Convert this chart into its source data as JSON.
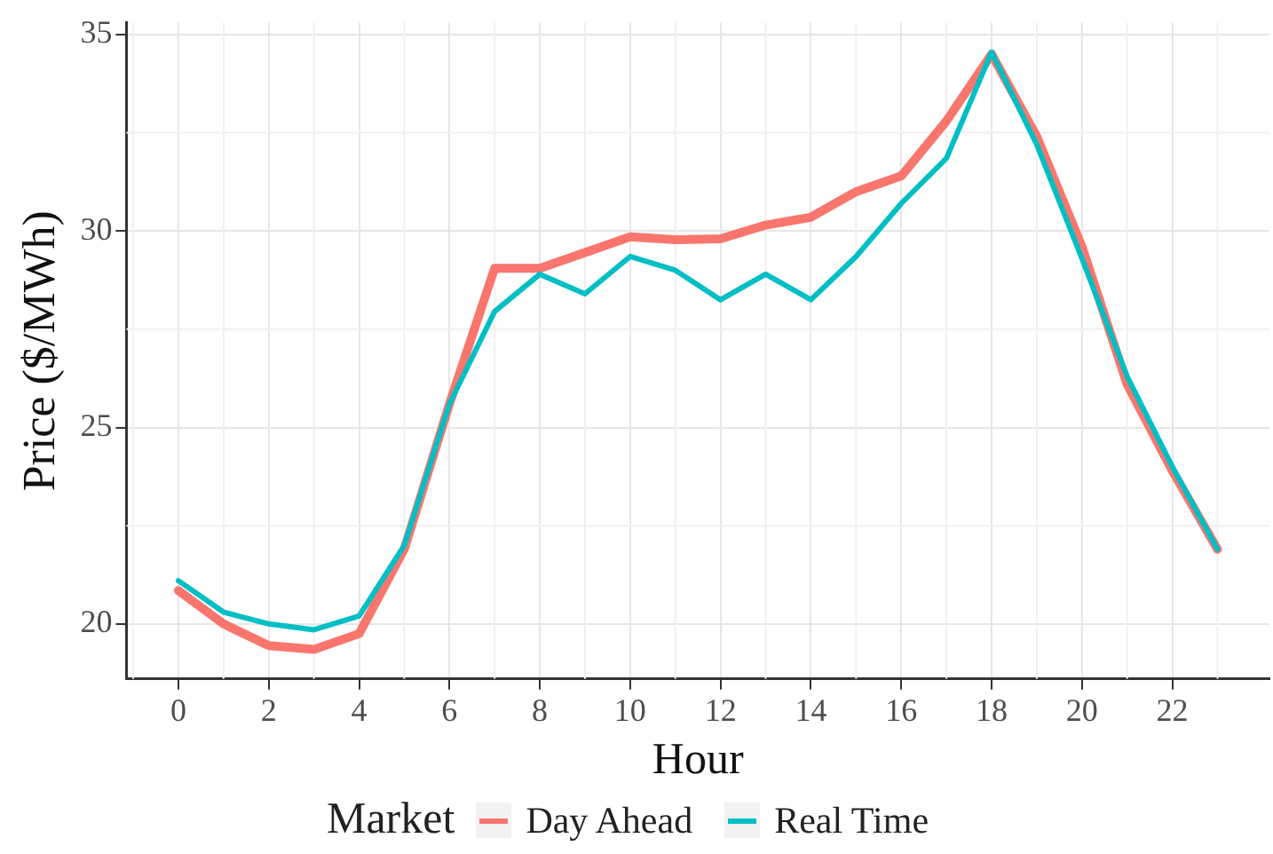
{
  "chart_data": {
    "type": "line",
    "xlabel": "Hour",
    "ylabel": "Price ($/MWh)",
    "legend_title": "Market",
    "x": [
      0,
      1,
      2,
      3,
      4,
      5,
      6,
      7,
      8,
      9,
      10,
      11,
      12,
      13,
      14,
      15,
      16,
      17,
      18,
      19,
      20,
      21,
      22,
      23
    ],
    "series": [
      {
        "name": "Day Ahead",
        "color": "#f8766d",
        "values": [
          20.85,
          20.0,
          19.45,
          19.35,
          19.75,
          21.9,
          25.6,
          29.05,
          29.05,
          29.45,
          29.85,
          29.78,
          29.8,
          30.15,
          30.35,
          31.0,
          31.4,
          32.8,
          34.5,
          32.4,
          29.6,
          26.1,
          23.9,
          21.9
        ]
      },
      {
        "name": "Real Time",
        "color": "#00bfc4",
        "values": [
          21.1,
          20.3,
          20.0,
          19.85,
          20.2,
          22.0,
          25.6,
          27.95,
          28.9,
          28.4,
          29.35,
          29.0,
          28.25,
          28.9,
          28.25,
          29.35,
          30.7,
          31.85,
          34.55,
          32.2,
          29.3,
          26.3,
          24.0,
          21.9
        ]
      }
    ],
    "xlim": [
      -1.15,
      24.15
    ],
    "xticks": [
      0,
      2,
      4,
      6,
      8,
      10,
      12,
      14,
      16,
      18,
      20,
      22
    ],
    "ylim": [
      18.6,
      35.3
    ],
    "yticks": [
      20,
      25,
      30,
      35
    ],
    "grid": true,
    "legend": "bottom",
    "marker": "none",
    "line_style": "solid"
  }
}
